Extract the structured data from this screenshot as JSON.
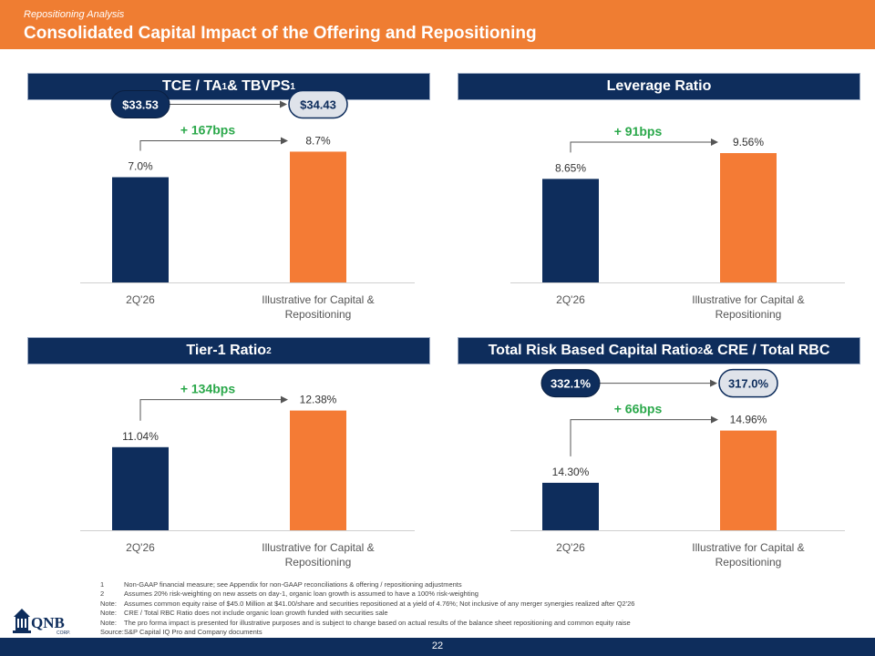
{
  "header": {
    "subtitle": "Repositioning Analysis",
    "title": "Consolidated Capital Impact of the Offering and Repositioning"
  },
  "colors": {
    "navy": "#0e2d5c",
    "orange": "#f47b35",
    "green": "#2aa84a",
    "header": "#ef7d32"
  },
  "chart_data": [
    {
      "type": "bar",
      "title": "TCE / TA",
      "title_note": "1",
      "title_rest": " & TBVPS",
      "title_note2": "1",
      "categories": [
        "2Q'26",
        "Illustrative for Capital & Repositioning"
      ],
      "values": [
        7.0,
        8.7
      ],
      "value_labels": [
        "7.0%",
        "8.7%"
      ],
      "change_label": "+ 167bps",
      "bubbles": [
        "$33.53",
        "$34.43"
      ],
      "ylim": [
        0,
        10.0
      ]
    },
    {
      "type": "bar",
      "title": "Leverage Ratio",
      "title_note": "",
      "title_rest": "",
      "title_note2": "",
      "categories": [
        "2Q'26",
        "Illustrative for Capital & Repositioning"
      ],
      "values": [
        8.65,
        9.56
      ],
      "value_labels": [
        "8.65%",
        "9.56%"
      ],
      "change_label": "+ 91bps",
      "bubbles": [],
      "ylim": [
        5.0,
        10.3
      ]
    },
    {
      "type": "bar",
      "title": "Tier-1 Ratio",
      "title_note": "2",
      "title_rest": "",
      "title_note2": "",
      "categories": [
        "2Q'26",
        "Illustrative for Capital & Repositioning"
      ],
      "values": [
        11.04,
        12.38
      ],
      "value_labels": [
        "11.04%",
        "12.38%"
      ],
      "change_label": "+ 134bps",
      "bubbles": [],
      "ylim": [
        8.0,
        13.5
      ]
    },
    {
      "type": "bar",
      "title": "Total Risk Based Capital Ratio",
      "title_note": "2",
      "title_rest": " & CRE / Total RBC",
      "title_note2": "",
      "categories": [
        "2Q'26",
        "Illustrative for Capital & Repositioning"
      ],
      "values": [
        14.3,
        14.96
      ],
      "value_labels": [
        "14.30%",
        "14.96%"
      ],
      "change_label": "+ 66bps",
      "bubbles": [
        "332.1%",
        "317.0%"
      ],
      "ylim": [
        13.7,
        15.6
      ]
    }
  ],
  "footnotes": [
    {
      "k": "1",
      "t": "Non-GAAP financial measure; see Appendix for non-GAAP reconciliations & offering / repositioning adjustments"
    },
    {
      "k": "2",
      "t": "Assumes 20% risk-weighting on new assets on day-1, organic loan growth is assumed to have a 100% risk-weighting"
    },
    {
      "k": "Note:",
      "t": "Assumes common equity raise of $45.0 Million at $41.00/share and securities repositioned at a yield of 4.76%; Not inclusive of any merger synergies realized after Q2'26"
    },
    {
      "k": "Note:",
      "t": "CRE / Total RBC Ratio does not include organic loan growth funded with securities sale"
    },
    {
      "k": "Note:",
      "t": "The pro forma impact is presented for illustrative purposes and is subject to change based on actual results of the balance sheet repositioning and common equity raise"
    },
    {
      "k": "Source:",
      "t": "S&P Capital IQ Pro and Company documents"
    }
  ],
  "logo": {
    "text": "QNB",
    "sub": "CORP."
  },
  "page_number": "22"
}
